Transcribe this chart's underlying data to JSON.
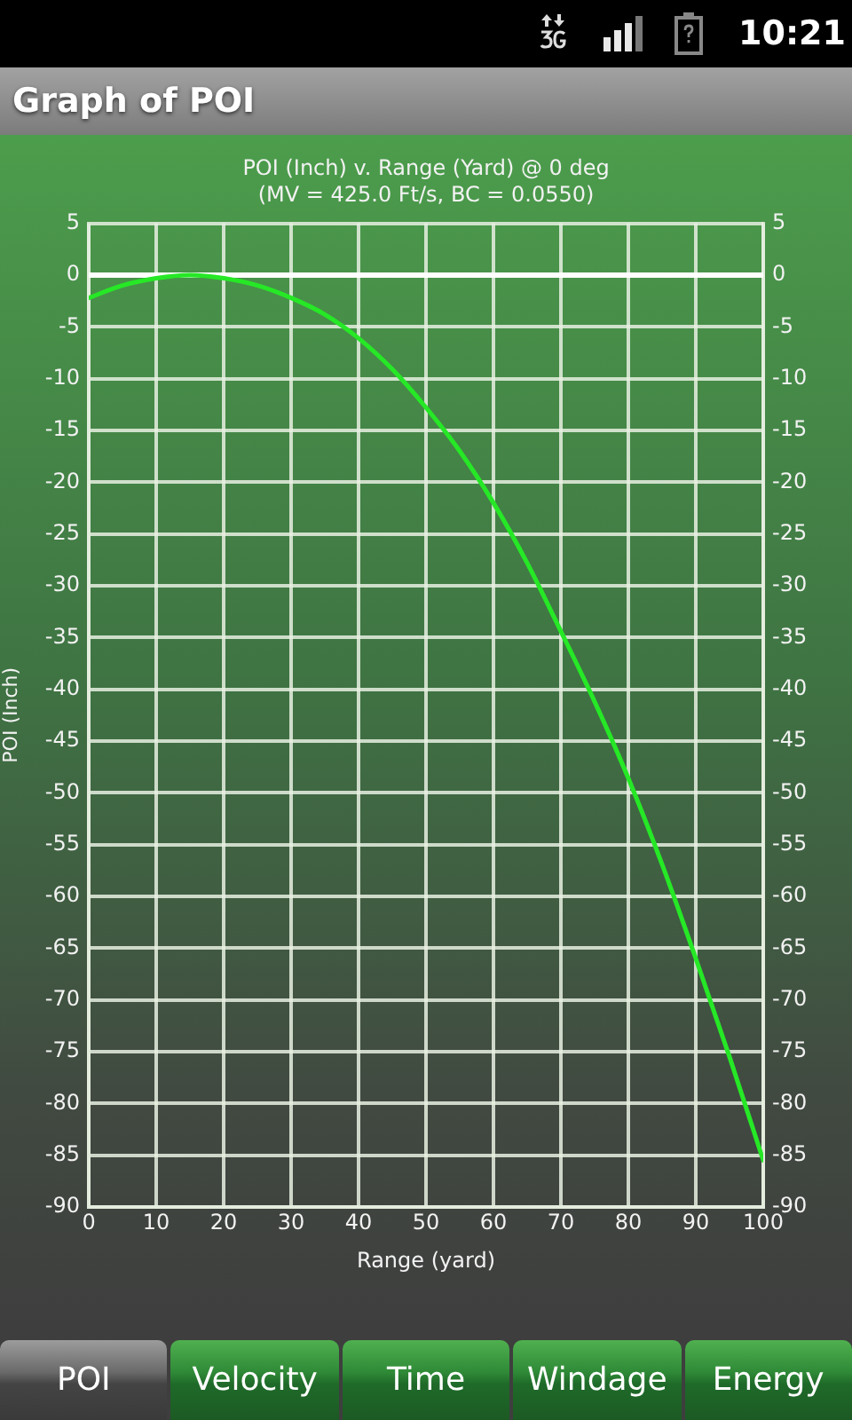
{
  "chart_data": {
    "type": "line",
    "title": "POI (Inch) v. Range (Yard) @ 0 deg",
    "subtitle": "(MV = 425.0 Ft/s, BC = 0.0550)",
    "xlabel": "Range (yard)",
    "ylabel": "POI (Inch)",
    "annotations": [
      "Graph of POI",
      "10:21",
      "POI",
      "Velocity",
      "Time",
      "Windage",
      "Energy"
    ],
    "x": [
      0,
      5,
      10,
      15,
      20,
      25,
      30,
      35,
      40,
      45,
      50,
      55,
      60,
      65,
      70,
      75,
      80,
      85,
      90,
      95,
      100
    ],
    "values": [
      -2.2,
      -1.0,
      -0.3,
      0,
      -0.3,
      -1.0,
      -2.2,
      -3.8,
      -6.1,
      -9.1,
      -12.8,
      -17.0,
      -22.0,
      -27.8,
      -34.4,
      -41.2,
      -48.6,
      -56.9,
      -66.0,
      -75.5,
      -85.5
    ],
    "color": "#26e826",
    "marker": "none",
    "line_style": "solid",
    "grid": true,
    "xlim": [
      0,
      100
    ],
    "xticks": [
      0,
      10,
      20,
      30,
      40,
      50,
      60,
      70,
      80,
      90,
      100
    ],
    "ylim": [
      -90,
      5
    ],
    "yticks": [
      5,
      0,
      -5,
      -10,
      -15,
      -20,
      -25,
      -30,
      -35,
      -40,
      -45,
      -50,
      -55,
      -60,
      -65,
      -70,
      -75,
      -80,
      -85,
      -90
    ],
    "y2lim": [
      -90,
      5
    ],
    "y2ticks": [
      5,
      0,
      -5,
      -10,
      -15,
      -20,
      -25,
      -30,
      -35,
      -40,
      -45,
      -50,
      -55,
      -60,
      -65,
      -70,
      -75,
      -80,
      -85,
      -90
    ],
    "ref_lines": [
      {
        "axis": "y",
        "value": 0,
        "color": "#ffffff"
      }
    ]
  }
}
